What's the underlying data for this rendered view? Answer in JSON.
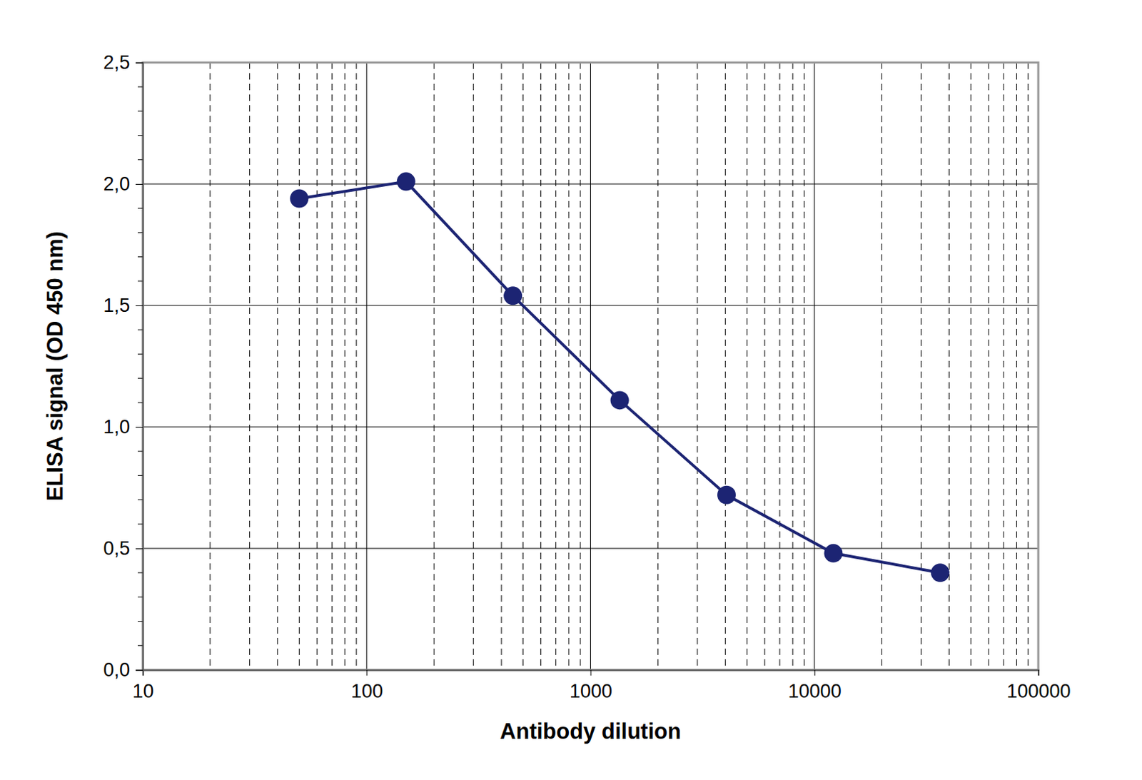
{
  "chart_data": {
    "type": "line",
    "xlabel": "Antibody dilution",
    "ylabel": "ELISA signal (OD 450 nm)",
    "x": [
      50,
      150,
      450,
      1350,
      4050,
      12150,
      36450
    ],
    "values": [
      1.94,
      2.01,
      1.54,
      1.11,
      0.72,
      0.48,
      0.4
    ],
    "color": "#1c2473",
    "marker": "circle",
    "line_style": "solid",
    "log": "x",
    "grid": true,
    "xlim": [
      10,
      100000
    ],
    "xticks": [
      10,
      100,
      1000,
      10000,
      100000
    ],
    "ylim": [
      0,
      2.5
    ],
    "yticks": [
      {
        "value": 0,
        "label": "0,0"
      },
      {
        "value": 0.5,
        "label": "0,5"
      },
      {
        "value": 1,
        "label": "1,0"
      },
      {
        "value": 1.5,
        "label": "1,5"
      },
      {
        "value": 2,
        "label": "2,0"
      },
      {
        "value": 2.5,
        "label": "2,5"
      }
    ]
  }
}
